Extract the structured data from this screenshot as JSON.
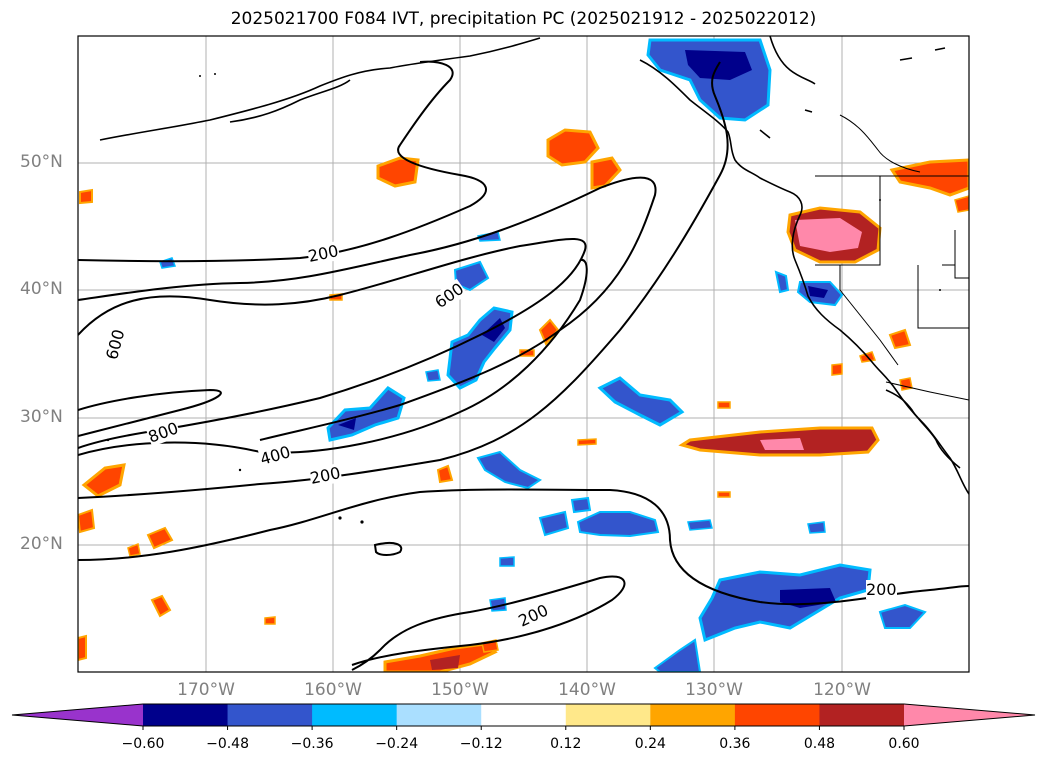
{
  "title": "2025021700 F084 IVT, precipitation PC (2025021912 - 2025022012)",
  "lat_labels": [
    "50°N",
    "40°N",
    "30°N",
    "20°N"
  ],
  "lon_labels": [
    "170°W",
    "160°W",
    "150°W",
    "140°W",
    "130°W",
    "120°W"
  ],
  "contour_labels": [
    "200",
    "600",
    "600",
    "800",
    "400",
    "200",
    "200",
    "200"
  ],
  "colorbar": {
    "ticks": [
      "−0.60",
      "−0.48",
      "−0.36",
      "−0.24",
      "−0.12",
      "0.12",
      "0.24",
      "0.36",
      "0.48",
      "0.60"
    ],
    "colors": [
      "#9933cc",
      "#00008b",
      "#3355cc",
      "#00bbff",
      "#aadfff",
      "#ffffff",
      "#ffe88a",
      "#ffa500",
      "#ff4500",
      "#b22222",
      "#ff88aa"
    ]
  }
}
